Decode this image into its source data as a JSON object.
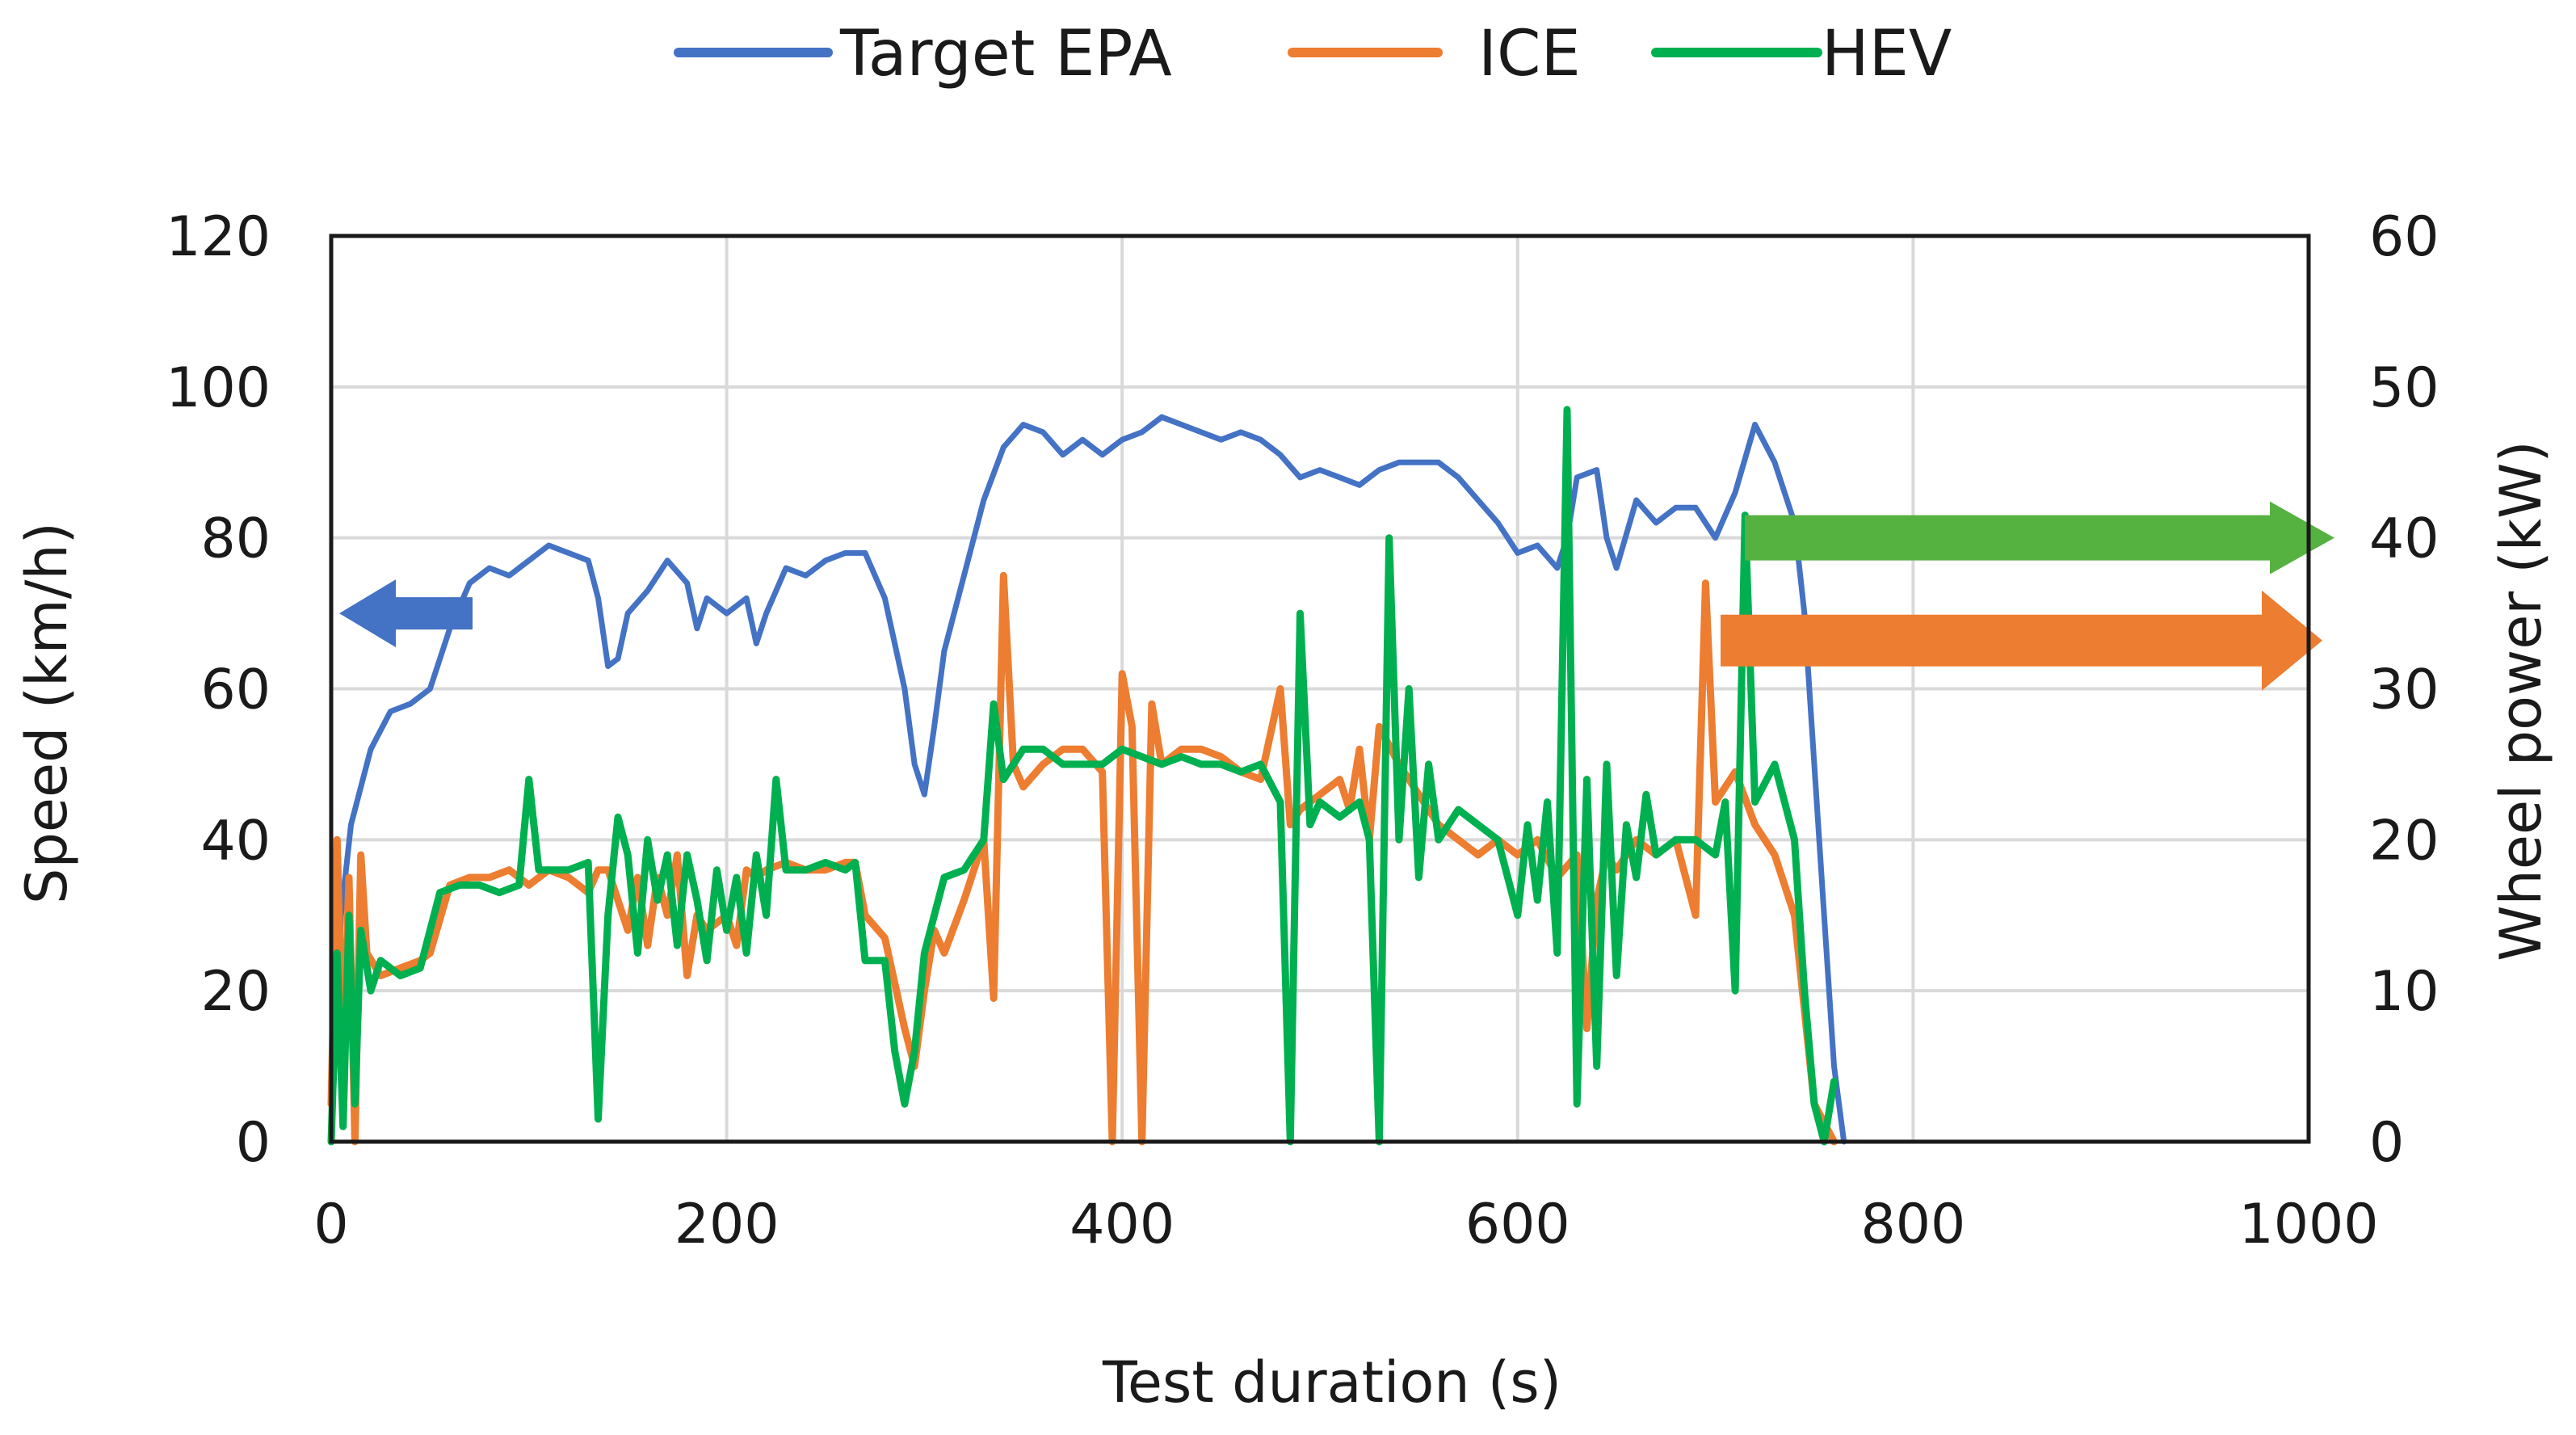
{
  "chart_data": {
    "type": "line",
    "title": "",
    "xlabel": "Test duration (s)",
    "ylabel": "Speed (km/h)",
    "y2label": "Wheel power (kW)",
    "xlim": [
      0,
      1000
    ],
    "ylim": [
      0,
      120
    ],
    "y2lim": [
      0,
      60
    ],
    "x_ticks": [
      "0",
      "200",
      "400",
      "600",
      "800",
      "1000"
    ],
    "y_ticks": [
      "0",
      "20",
      "40",
      "60",
      "80",
      "100",
      "120"
    ],
    "y2_ticks": [
      "0",
      "10",
      "20",
      "30",
      "40",
      "50",
      "60"
    ],
    "grid": true,
    "legend_position": "top-center",
    "series": [
      {
        "name": "Target EPA",
        "color": "#4472c4",
        "axis": "left",
        "points": [
          [
            0,
            0
          ],
          [
            5,
            30
          ],
          [
            10,
            42
          ],
          [
            20,
            52
          ],
          [
            30,
            57
          ],
          [
            40,
            58
          ],
          [
            50,
            60
          ],
          [
            60,
            68
          ],
          [
            70,
            74
          ],
          [
            80,
            76
          ],
          [
            90,
            75
          ],
          [
            100,
            77
          ],
          [
            110,
            79
          ],
          [
            120,
            78
          ],
          [
            130,
            77
          ],
          [
            135,
            72
          ],
          [
            140,
            63
          ],
          [
            145,
            64
          ],
          [
            150,
            70
          ],
          [
            160,
            73
          ],
          [
            170,
            77
          ],
          [
            180,
            74
          ],
          [
            185,
            68
          ],
          [
            190,
            72
          ],
          [
            200,
            70
          ],
          [
            210,
            72
          ],
          [
            215,
            66
          ],
          [
            220,
            70
          ],
          [
            230,
            76
          ],
          [
            240,
            75
          ],
          [
            250,
            77
          ],
          [
            260,
            78
          ],
          [
            270,
            78
          ],
          [
            280,
            72
          ],
          [
            290,
            60
          ],
          [
            295,
            50
          ],
          [
            300,
            46
          ],
          [
            305,
            55
          ],
          [
            310,
            65
          ],
          [
            320,
            75
          ],
          [
            330,
            85
          ],
          [
            340,
            92
          ],
          [
            350,
            95
          ],
          [
            360,
            94
          ],
          [
            370,
            91
          ],
          [
            380,
            93
          ],
          [
            390,
            91
          ],
          [
            400,
            93
          ],
          [
            410,
            94
          ],
          [
            420,
            96
          ],
          [
            430,
            95
          ],
          [
            440,
            94
          ],
          [
            450,
            93
          ],
          [
            460,
            94
          ],
          [
            470,
            93
          ],
          [
            480,
            91
          ],
          [
            490,
            88
          ],
          [
            500,
            89
          ],
          [
            510,
            88
          ],
          [
            520,
            87
          ],
          [
            530,
            89
          ],
          [
            540,
            90
          ],
          [
            550,
            90
          ],
          [
            560,
            90
          ],
          [
            570,
            88
          ],
          [
            580,
            85
          ],
          [
            590,
            82
          ],
          [
            600,
            78
          ],
          [
            610,
            79
          ],
          [
            620,
            76
          ],
          [
            625,
            80
          ],
          [
            630,
            88
          ],
          [
            640,
            89
          ],
          [
            645,
            80
          ],
          [
            650,
            76
          ],
          [
            660,
            85
          ],
          [
            670,
            82
          ],
          [
            680,
            84
          ],
          [
            690,
            84
          ],
          [
            700,
            80
          ],
          [
            710,
            86
          ],
          [
            720,
            95
          ],
          [
            730,
            90
          ],
          [
            740,
            82
          ],
          [
            745,
            70
          ],
          [
            750,
            50
          ],
          [
            755,
            30
          ],
          [
            760,
            10
          ],
          [
            765,
            0
          ]
        ]
      },
      {
        "name": "ICE",
        "color": "#ed7d31",
        "axis": "left",
        "points": [
          [
            0,
            5
          ],
          [
            3,
            40
          ],
          [
            6,
            10
          ],
          [
            9,
            35
          ],
          [
            12,
            0
          ],
          [
            15,
            38
          ],
          [
            18,
            25
          ],
          [
            25,
            22
          ],
          [
            35,
            23
          ],
          [
            45,
            24
          ],
          [
            50,
            25
          ],
          [
            60,
            34
          ],
          [
            70,
            35
          ],
          [
            80,
            35
          ],
          [
            90,
            36
          ],
          [
            100,
            34
          ],
          [
            110,
            36
          ],
          [
            120,
            35
          ],
          [
            130,
            33
          ],
          [
            135,
            36
          ],
          [
            140,
            36
          ],
          [
            150,
            28
          ],
          [
            155,
            35
          ],
          [
            160,
            26
          ],
          [
            165,
            35
          ],
          [
            170,
            30
          ],
          [
            175,
            38
          ],
          [
            180,
            22
          ],
          [
            185,
            30
          ],
          [
            190,
            28
          ],
          [
            200,
            30
          ],
          [
            205,
            26
          ],
          [
            210,
            36
          ],
          [
            215,
            35
          ],
          [
            220,
            36
          ],
          [
            230,
            37
          ],
          [
            240,
            36
          ],
          [
            250,
            36
          ],
          [
            260,
            37
          ],
          [
            265,
            37
          ],
          [
            270,
            30
          ],
          [
            280,
            27
          ],
          [
            290,
            15
          ],
          [
            295,
            10
          ],
          [
            300,
            20
          ],
          [
            305,
            28
          ],
          [
            310,
            25
          ],
          [
            320,
            32
          ],
          [
            330,
            40
          ],
          [
            335,
            19
          ],
          [
            340,
            75
          ],
          [
            345,
            50
          ],
          [
            350,
            47
          ],
          [
            360,
            50
          ],
          [
            370,
            52
          ],
          [
            380,
            52
          ],
          [
            390,
            49
          ],
          [
            395,
            0
          ],
          [
            400,
            62
          ],
          [
            405,
            55
          ],
          [
            410,
            0
          ],
          [
            415,
            58
          ],
          [
            420,
            50
          ],
          [
            430,
            52
          ],
          [
            440,
            52
          ],
          [
            450,
            51
          ],
          [
            460,
            49
          ],
          [
            470,
            48
          ],
          [
            480,
            60
          ],
          [
            485,
            42
          ],
          [
            490,
            44
          ],
          [
            500,
            46
          ],
          [
            510,
            48
          ],
          [
            515,
            44
          ],
          [
            520,
            52
          ],
          [
            525,
            40
          ],
          [
            530,
            55
          ],
          [
            540,
            50
          ],
          [
            550,
            46
          ],
          [
            560,
            42
          ],
          [
            570,
            40
          ],
          [
            580,
            38
          ],
          [
            590,
            40
          ],
          [
            600,
            38
          ],
          [
            610,
            40
          ],
          [
            620,
            35
          ],
          [
            630,
            38
          ],
          [
            635,
            15
          ],
          [
            640,
            32
          ],
          [
            645,
            38
          ],
          [
            650,
            36
          ],
          [
            660,
            40
          ],
          [
            670,
            38
          ],
          [
            680,
            40
          ],
          [
            690,
            30
          ],
          [
            695,
            74
          ],
          [
            700,
            45
          ],
          [
            710,
            49
          ],
          [
            720,
            42
          ],
          [
            730,
            38
          ],
          [
            740,
            30
          ],
          [
            750,
            5
          ],
          [
            760,
            0
          ]
        ]
      },
      {
        "name": "HEV",
        "color": "#00b050",
        "axis": "left",
        "points": [
          [
            0,
            0
          ],
          [
            3,
            25
          ],
          [
            6,
            2
          ],
          [
            9,
            30
          ],
          [
            12,
            5
          ],
          [
            15,
            28
          ],
          [
            20,
            20
          ],
          [
            25,
            24
          ],
          [
            35,
            22
          ],
          [
            45,
            23
          ],
          [
            55,
            33
          ],
          [
            65,
            34
          ],
          [
            75,
            34
          ],
          [
            85,
            33
          ],
          [
            95,
            34
          ],
          [
            100,
            48
          ],
          [
            105,
            36
          ],
          [
            110,
            36
          ],
          [
            120,
            36
          ],
          [
            130,
            37
          ],
          [
            135,
            3
          ],
          [
            140,
            30
          ],
          [
            145,
            43
          ],
          [
            150,
            38
          ],
          [
            155,
            25
          ],
          [
            160,
            40
          ],
          [
            165,
            32
          ],
          [
            170,
            38
          ],
          [
            175,
            26
          ],
          [
            180,
            38
          ],
          [
            185,
            32
          ],
          [
            190,
            24
          ],
          [
            195,
            36
          ],
          [
            200,
            28
          ],
          [
            205,
            35
          ],
          [
            210,
            25
          ],
          [
            215,
            38
          ],
          [
            220,
            30
          ],
          [
            225,
            48
          ],
          [
            230,
            36
          ],
          [
            240,
            36
          ],
          [
            250,
            37
          ],
          [
            260,
            36
          ],
          [
            265,
            37
          ],
          [
            270,
            24
          ],
          [
            280,
            24
          ],
          [
            285,
            12
          ],
          [
            290,
            5
          ],
          [
            295,
            12
          ],
          [
            300,
            25
          ],
          [
            305,
            30
          ],
          [
            310,
            35
          ],
          [
            320,
            36
          ],
          [
            330,
            40
          ],
          [
            335,
            58
          ],
          [
            340,
            48
          ],
          [
            350,
            52
          ],
          [
            360,
            52
          ],
          [
            370,
            50
          ],
          [
            380,
            50
          ],
          [
            390,
            50
          ],
          [
            400,
            52
          ],
          [
            410,
            51
          ],
          [
            420,
            50
          ],
          [
            430,
            51
          ],
          [
            440,
            50
          ],
          [
            450,
            50
          ],
          [
            460,
            49
          ],
          [
            470,
            50
          ],
          [
            480,
            45
          ],
          [
            485,
            0
          ],
          [
            490,
            70
          ],
          [
            495,
            42
          ],
          [
            500,
            45
          ],
          [
            510,
            43
          ],
          [
            520,
            45
          ],
          [
            525,
            40
          ],
          [
            530,
            0
          ],
          [
            535,
            80
          ],
          [
            540,
            40
          ],
          [
            545,
            60
          ],
          [
            550,
            35
          ],
          [
            555,
            50
          ],
          [
            560,
            40
          ],
          [
            570,
            44
          ],
          [
            580,
            42
          ],
          [
            590,
            40
          ],
          [
            600,
            30
          ],
          [
            605,
            42
          ],
          [
            610,
            32
          ],
          [
            615,
            45
          ],
          [
            620,
            25
          ],
          [
            625,
            97
          ],
          [
            630,
            5
          ],
          [
            635,
            48
          ],
          [
            640,
            10
          ],
          [
            645,
            50
          ],
          [
            650,
            22
          ],
          [
            655,
            42
          ],
          [
            660,
            35
          ],
          [
            665,
            46
          ],
          [
            670,
            38
          ],
          [
            680,
            40
          ],
          [
            690,
            40
          ],
          [
            700,
            38
          ],
          [
            705,
            45
          ],
          [
            710,
            20
          ],
          [
            715,
            83
          ],
          [
            720,
            45
          ],
          [
            730,
            50
          ],
          [
            740,
            40
          ],
          [
            745,
            20
          ],
          [
            750,
            5
          ],
          [
            755,
            0
          ],
          [
            760,
            8
          ]
        ]
      }
    ]
  }
}
